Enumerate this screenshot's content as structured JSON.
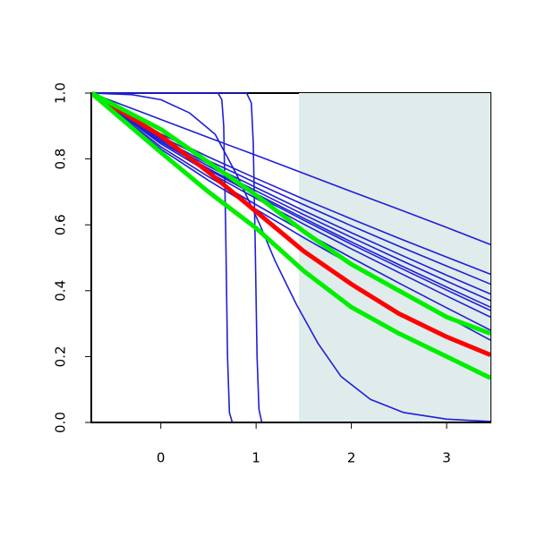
{
  "chart_data": {
    "type": "line",
    "xlim": [
      -0.73,
      3.46
    ],
    "ylim": [
      0,
      1
    ],
    "xticks": [
      0,
      1,
      2,
      3
    ],
    "yticks": [
      {
        "value": 0,
        "label": "0.0"
      },
      {
        "value": 0.2,
        "label": "0.2"
      },
      {
        "value": 0.4,
        "label": "0.4"
      },
      {
        "value": 0.6,
        "label": "0.6"
      },
      {
        "value": 0.8,
        "label": "0.8"
      },
      {
        "value": 1,
        "label": "1.0"
      }
    ],
    "shade": {
      "xlim": [
        1.45,
        3.46
      ],
      "color": "#e0ecec"
    },
    "series": [
      {
        "color": "#1f1fd6",
        "width": 1.6,
        "x": [
          -0.73,
          0,
          0.5,
          1,
          1.5,
          2,
          2.5,
          3,
          3.46
        ],
        "values": [
          1,
          0.92,
          0.865,
          0.811,
          0.756,
          0.701,
          0.647,
          0.592,
          0.54
        ]
      },
      {
        "color": "#1f1fd6",
        "width": 1.6,
        "x": [
          -0.73,
          0,
          0.5,
          1,
          1.5,
          2,
          2.5,
          3,
          3.46
        ],
        "values": [
          1,
          0.876,
          0.806,
          0.741,
          0.678,
          0.618,
          0.559,
          0.502,
          0.45
        ]
      },
      {
        "color": "#1f1fd6",
        "width": 1.6,
        "x": [
          -0.73,
          0,
          0.5,
          1,
          1.5,
          2,
          2.5,
          3,
          3.46
        ],
        "values": [
          1,
          0.869,
          0.795,
          0.727,
          0.661,
          0.597,
          0.535,
          0.475,
          0.42
        ]
      },
      {
        "color": "#1f1fd6",
        "width": 1.6,
        "x": [
          -0.73,
          0,
          0.5,
          1,
          1.5,
          2,
          2.5,
          3,
          3.46
        ],
        "values": [
          1,
          0.862,
          0.785,
          0.713,
          0.643,
          0.576,
          0.511,
          0.447,
          0.39
        ]
      },
      {
        "color": "#1f1fd6",
        "width": 1.6,
        "x": [
          -0.73,
          0,
          0.5,
          1,
          1.5,
          2,
          2.5,
          3,
          3.46
        ],
        "values": [
          1,
          0.858,
          0.778,
          0.703,
          0.631,
          0.562,
          0.495,
          0.429,
          0.37
        ]
      },
      {
        "color": "#1f1fd6",
        "width": 1.6,
        "x": [
          -0.73,
          0,
          0.5,
          1,
          1.5,
          2,
          2.5,
          3,
          3.46
        ],
        "values": [
          1,
          0.853,
          0.771,
          0.694,
          0.62,
          0.548,
          0.479,
          0.411,
          0.35
        ]
      },
      {
        "color": "#1f1fd6",
        "width": 1.6,
        "x": [
          -0.73,
          0,
          0.5,
          1,
          1.5,
          2,
          2.5,
          3,
          3.46
        ],
        "values": [
          1,
          0.851,
          0.767,
          0.689,
          0.614,
          0.541,
          0.471,
          0.402,
          0.34
        ]
      },
      {
        "color": "#1f1fd6",
        "width": 1.6,
        "x": [
          -0.73,
          0,
          0.5,
          1,
          1.5,
          2,
          2.5,
          3,
          3.46
        ],
        "values": [
          1,
          0.846,
          0.76,
          0.68,
          0.602,
          0.527,
          0.455,
          0.384,
          0.32
        ]
      },
      {
        "color": "#1f1fd6",
        "width": 1.6,
        "x": [
          -0.73,
          0,
          0.5,
          1,
          1.5,
          2,
          2.5,
          3,
          3.46
        ],
        "values": [
          1,
          0.837,
          0.746,
          0.661,
          0.579,
          0.5,
          0.423,
          0.348,
          0.28
        ]
      },
      {
        "color": "#1f1fd6",
        "width": 1.6,
        "x": [
          -0.73,
          0,
          0.5,
          1,
          1.5,
          2,
          2.5,
          3,
          3.46
        ],
        "values": [
          1,
          0.83,
          0.735,
          0.647,
          0.561,
          0.479,
          0.399,
          0.321,
          0.25
        ]
      },
      {
        "color": "#1f1fd6",
        "width": 1.6,
        "x": [
          -0.73,
          -0.3,
          0,
          0.3,
          0.57,
          0.8,
          1.04,
          1.2,
          1.42,
          1.65,
          1.89,
          2.2,
          2.55,
          3,
          3.46
        ],
        "values": [
          1,
          0.995,
          0.98,
          0.94,
          0.875,
          0.75,
          0.6,
          0.49,
          0.36,
          0.24,
          0.14,
          0.07,
          0.03,
          0.01,
          0.003
        ]
      },
      {
        "color": "#1f1fd6",
        "width": 1.6,
        "x": [
          -0.73,
          0.6,
          0.64,
          0.66,
          0.68,
          0.7,
          0.72,
          0.75,
          3.46
        ],
        "values": [
          1,
          1,
          0.98,
          0.9,
          0.6,
          0.2,
          0.03,
          0,
          0
        ]
      },
      {
        "color": "#1f1fd6",
        "width": 1.6,
        "x": [
          -0.73,
          0.9,
          0.95,
          0.97,
          0.99,
          1.01,
          1.03,
          1.06,
          3.46
        ],
        "values": [
          1,
          1,
          0.97,
          0.85,
          0.55,
          0.2,
          0.04,
          0,
          0
        ]
      },
      {
        "color": "#ff0000",
        "width": 5,
        "x": [
          -0.73,
          0,
          0.5,
          1,
          1.5,
          2,
          2.5,
          3,
          3.46
        ],
        "values": [
          1,
          0.87,
          0.76,
          0.64,
          0.52,
          0.42,
          0.33,
          0.26,
          0.205
        ]
      },
      {
        "color": "#00ee00",
        "width": 5,
        "x": [
          -0.73,
          0,
          0.5,
          1,
          1.5,
          2,
          2.5,
          3,
          3.46
        ],
        "values": [
          1,
          0.82,
          0.7,
          0.59,
          0.46,
          0.35,
          0.27,
          0.2,
          0.135
        ]
      },
      {
        "color": "#00ee00",
        "width": 5,
        "x": [
          -0.73,
          0,
          0.5,
          1,
          1.5,
          2,
          2.5,
          3,
          3.46
        ],
        "values": [
          1,
          0.89,
          0.79,
          0.69,
          0.58,
          0.48,
          0.4,
          0.32,
          0.27
        ]
      }
    ]
  }
}
